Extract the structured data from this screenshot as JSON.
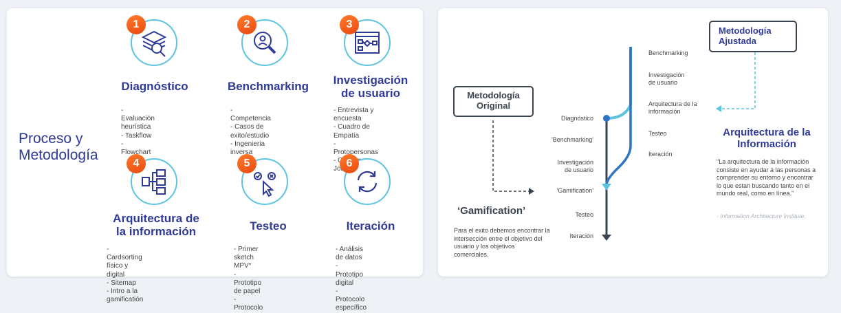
{
  "left": {
    "title": "Proceso y\nMetodología",
    "steps": [
      {
        "number": "1",
        "title": "Diagnóstico",
        "icon": "layers-search-icon",
        "items": [
          "- Evaluación heurística",
          "- Taskflow",
          "- Flowchart"
        ]
      },
      {
        "number": "2",
        "title": "Benchmarking",
        "icon": "magnifier-person-icon",
        "items": [
          "- Competencia",
          "- Casos de exito/estudio",
          "- Ingenieria inversa"
        ]
      },
      {
        "number": "3",
        "title": "Investigación\nde usuario",
        "icon": "flowchart-window-icon",
        "items": [
          "- Entrevista y encuesta",
          "- Cuadro de Empatía",
          "- Protopersonas",
          "- Costumer Journey"
        ]
      },
      {
        "number": "4",
        "title": "Arquitectura de\nla información",
        "icon": "sitemap-icon",
        "items": [
          "- Cardsorting físico y digital",
          "- Sitemap",
          "- Intro a la gamificatión"
        ]
      },
      {
        "number": "5",
        "title": "Testeo",
        "icon": "cursor-check-icon",
        "items": [
          "- Primer sketch MPV*",
          "- Prototipo de papel",
          "- Protocolo"
        ]
      },
      {
        "number": "6",
        "title": "Iteración",
        "icon": "refresh-icon",
        "items": [
          "- Análisis de datos",
          "- Prototipo digital",
          "- Protocolo específico"
        ]
      }
    ]
  },
  "right": {
    "original_box": "Metodología\nOriginal",
    "adjusted_box": "Metodología\nAjustada",
    "original_steps": [
      "Diagnóstico",
      "'Benchmarking'",
      "Investigación\nde usuario",
      "'Gamification'",
      "Testeo",
      "Iteración"
    ],
    "adjusted_steps": [
      "Benchmarking",
      "Investigación\nde usuario",
      "Arquitectura de la\ninformación",
      "Testeo",
      "Iteración"
    ],
    "gamification_title": "‘Gamification’",
    "gamification_text": "Para el exito debemos encontrar la intersección entre el objetivo del usuario y los objetivos comerciales.",
    "ai_title": "Arquitectura de la\nInformación",
    "ai_quote": "\"La arquitectura de la información consiste en ayudar a las personas a comprender su entorno y encontrar lo que estan buscando tanto en el mundo real, como en línea.\"",
    "ai_source": "- Information Architecture Institute.",
    "colors": {
      "navy": "#2f3a98",
      "cyan": "#5cc3e0",
      "orange": "#ff6a1f",
      "dark": "#3a4450"
    }
  }
}
